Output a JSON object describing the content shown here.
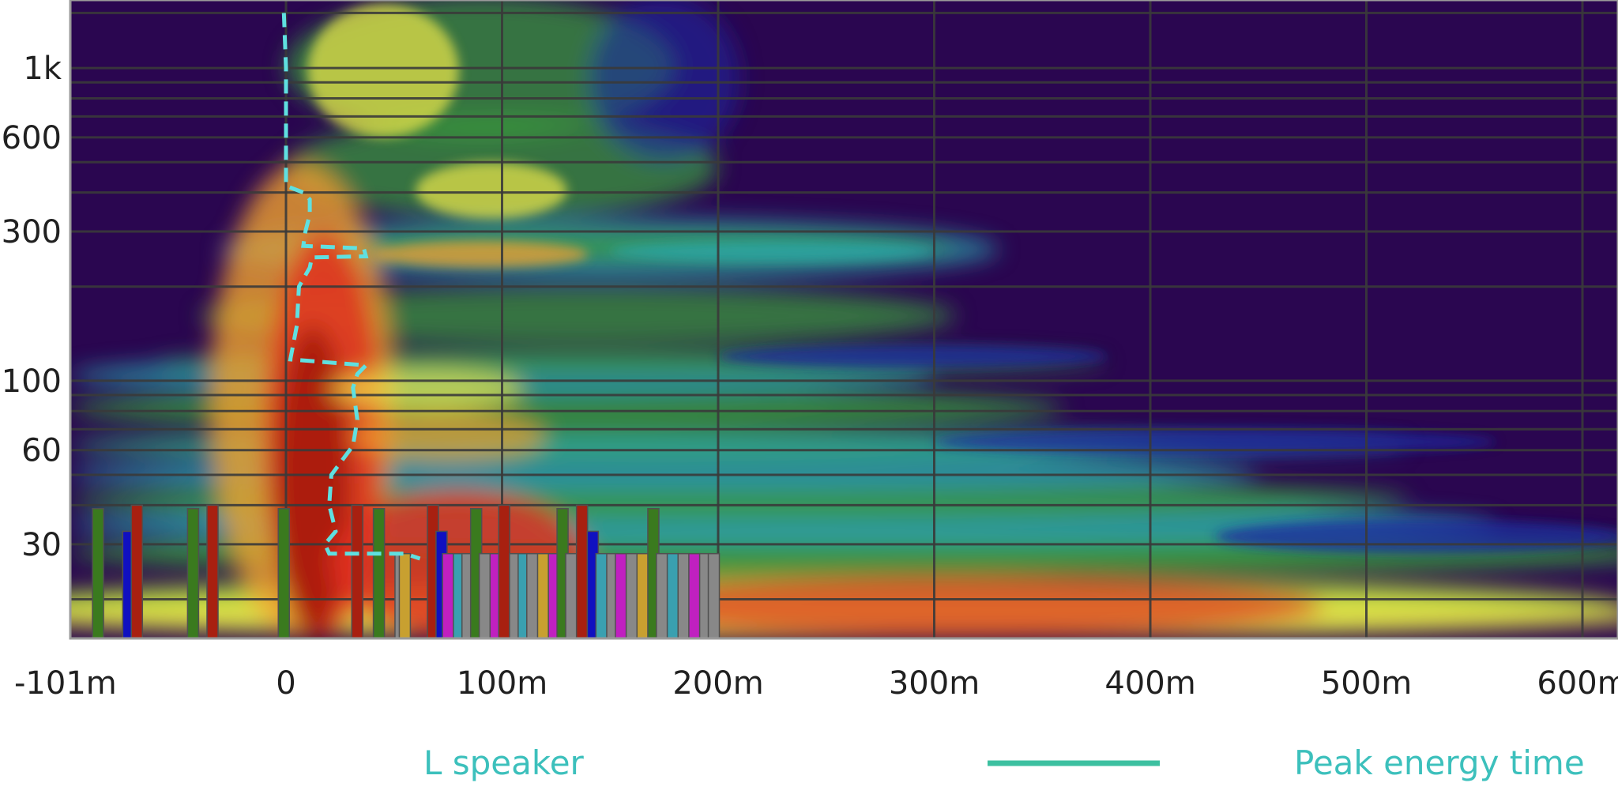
{
  "chart_data": {
    "type": "heatmap",
    "title": "",
    "xlabel": "",
    "ylabel": "",
    "x_axis": {
      "scale": "linear",
      "range_ms": [
        -101,
        615
      ],
      "ticks": [
        {
          "value": -101,
          "label": "-101m"
        },
        {
          "value": 0,
          "label": "0"
        },
        {
          "value": 100,
          "label": "100m"
        },
        {
          "value": 200,
          "label": "200m"
        },
        {
          "value": 300,
          "label": "300m"
        },
        {
          "value": 400,
          "label": "400m"
        },
        {
          "value": 500,
          "label": "500m"
        },
        {
          "value": 600,
          "label": "600m"
        }
      ]
    },
    "y_axis": {
      "scale": "log",
      "range_hz": [
        15,
        1650
      ],
      "ticks": [
        {
          "value": 1000,
          "label": "1k"
        },
        {
          "value": 600,
          "label": "600"
        },
        {
          "value": 300,
          "label": "300"
        },
        {
          "value": 100,
          "label": "100"
        },
        {
          "value": 60,
          "label": "60"
        },
        {
          "value": 30,
          "label": "30"
        }
      ],
      "gridlines_hz": [
        20,
        30,
        40,
        50,
        60,
        70,
        80,
        90,
        100,
        200,
        300,
        400,
        500,
        600,
        700,
        800,
        900,
        1000,
        1500
      ]
    },
    "grid": true,
    "colormap": [
      "#2a0650",
      "#1a2aa0",
      "#2aa8b0",
      "#3aa23c",
      "#9ccf3c",
      "#f0e84a",
      "#f0a030",
      "#e03020",
      "#a01208"
    ],
    "peak_energy_time": [
      {
        "hz": 1500,
        "ms": -1
      },
      {
        "hz": 1000,
        "ms": 0
      },
      {
        "hz": 600,
        "ms": 0
      },
      {
        "hz": 420,
        "ms": 0
      },
      {
        "hz": 400,
        "ms": 8
      },
      {
        "hz": 380,
        "ms": 11
      },
      {
        "hz": 340,
        "ms": 11
      },
      {
        "hz": 300,
        "ms": 9
      },
      {
        "hz": 270,
        "ms": 8
      },
      {
        "hz": 265,
        "ms": 36
      },
      {
        "hz": 250,
        "ms": 37
      },
      {
        "hz": 248,
        "ms": 12
      },
      {
        "hz": 230,
        "ms": 11
      },
      {
        "hz": 200,
        "ms": 6
      },
      {
        "hz": 150,
        "ms": 5
      },
      {
        "hz": 117,
        "ms": 2
      },
      {
        "hz": 112,
        "ms": 37
      },
      {
        "hz": 105,
        "ms": 33
      },
      {
        "hz": 95,
        "ms": 31
      },
      {
        "hz": 75,
        "ms": 33
      },
      {
        "hz": 62,
        "ms": 31
      },
      {
        "hz": 50,
        "ms": 21
      },
      {
        "hz": 40,
        "ms": 20
      },
      {
        "hz": 33,
        "ms": 23
      },
      {
        "hz": 30,
        "ms": 18
      },
      {
        "hz": 28,
        "ms": 20
      },
      {
        "hz": 28,
        "ms": 55
      },
      {
        "hz": 27,
        "ms": 62
      }
    ],
    "impulse_bars_ms": [
      {
        "ms": -87,
        "color": "#3a7a1e",
        "top_hz": 39
      },
      {
        "ms": -73,
        "color": "#1010c0",
        "top_hz": 33
      },
      {
        "ms": -69,
        "color": "#a82010",
        "top_hz": 40
      },
      {
        "ms": -43,
        "color": "#3a7a1e",
        "top_hz": 39
      },
      {
        "ms": -34,
        "color": "#a82010",
        "top_hz": 40
      },
      {
        "ms": -1,
        "color": "#1010c0",
        "top_hz": 33
      },
      {
        "ms": -1,
        "color": "#3a7a1e",
        "top_hz": 39
      },
      {
        "ms": 33,
        "color": "#a82010",
        "top_hz": 40
      },
      {
        "ms": 43,
        "color": "#3a7a1e",
        "top_hz": 39
      },
      {
        "ms": 53,
        "color": "#888888",
        "top_hz": 28
      },
      {
        "ms": 55,
        "color": "#c8a030",
        "top_hz": 28
      },
      {
        "ms": 68,
        "color": "#a82010",
        "top_hz": 40
      },
      {
        "ms": 72,
        "color": "#1010c0",
        "top_hz": 33
      },
      {
        "ms": 75,
        "color": "#c020c0",
        "top_hz": 28
      },
      {
        "ms": 80,
        "color": "#3aa0b0",
        "top_hz": 28
      },
      {
        "ms": 84,
        "color": "#888888",
        "top_hz": 28
      },
      {
        "ms": 88,
        "color": "#3a7a1e",
        "top_hz": 39
      },
      {
        "ms": 92,
        "color": "#888888",
        "top_hz": 28
      },
      {
        "ms": 97,
        "color": "#c020c0",
        "top_hz": 28
      },
      {
        "ms": 101,
        "color": "#a82010",
        "top_hz": 40
      },
      {
        "ms": 106,
        "color": "#888888",
        "top_hz": 28
      },
      {
        "ms": 110,
        "color": "#3aa0b0",
        "top_hz": 28
      },
      {
        "ms": 114,
        "color": "#888888",
        "top_hz": 28
      },
      {
        "ms": 119,
        "color": "#c8a030",
        "top_hz": 28
      },
      {
        "ms": 124,
        "color": "#c020c0",
        "top_hz": 28
      },
      {
        "ms": 128,
        "color": "#3a7a1e",
        "top_hz": 39
      },
      {
        "ms": 132,
        "color": "#888888",
        "top_hz": 28
      },
      {
        "ms": 137,
        "color": "#a82010",
        "top_hz": 40
      },
      {
        "ms": 142,
        "color": "#1010c0",
        "top_hz": 33
      },
      {
        "ms": 146,
        "color": "#3aa0b0",
        "top_hz": 28
      },
      {
        "ms": 151,
        "color": "#888888",
        "top_hz": 28
      },
      {
        "ms": 155,
        "color": "#c020c0",
        "top_hz": 28
      },
      {
        "ms": 160,
        "color": "#888888",
        "top_hz": 28
      },
      {
        "ms": 165,
        "color": "#c8a030",
        "top_hz": 28
      },
      {
        "ms": 170,
        "color": "#3a7a1e",
        "top_hz": 39
      },
      {
        "ms": 174,
        "color": "#888888",
        "top_hz": 28
      },
      {
        "ms": 179,
        "color": "#3aa0b0",
        "top_hz": 28
      },
      {
        "ms": 184,
        "color": "#888888",
        "top_hz": 28
      },
      {
        "ms": 189,
        "color": "#c020c0",
        "top_hz": 28
      },
      {
        "ms": 194,
        "color": "#888888",
        "top_hz": 28
      },
      {
        "ms": 198,
        "color": "#888888",
        "top_hz": 28
      }
    ],
    "legend": {
      "position": "bottom",
      "items": [
        {
          "label": "L speaker",
          "color": "#3cc0bc"
        },
        {
          "label": "Peak energy time",
          "color": "#3cc0a0"
        }
      ]
    }
  }
}
